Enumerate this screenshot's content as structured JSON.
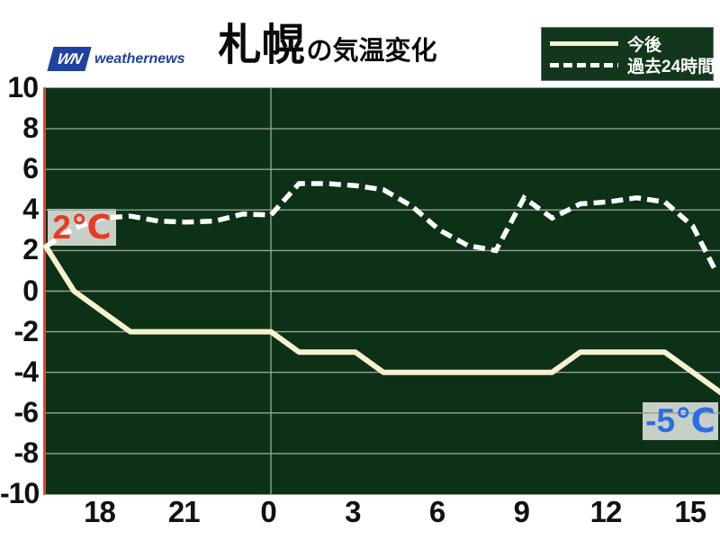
{
  "header": {
    "logo_mark": "WN",
    "logo_text": "weathernews",
    "title_city": "札幌",
    "title_suffix": "の気温変化"
  },
  "legend": {
    "forecast_label": "今後",
    "past_label": "過去24時間"
  },
  "annotations": {
    "current_temp": "2℃",
    "end_temp": "-5℃"
  },
  "colors": {
    "chart_background": "#0c3117",
    "grid_line": "#93a394",
    "left_axis": "#e8402c",
    "right_border": "#5374d2",
    "forecast_line": "#f7f2cd",
    "past_line": "#ffffff",
    "annotation_box": "#c7cfc7",
    "current_temp_text": "#ea3a21",
    "end_temp_text": "#2e6ce6",
    "logo_blue": "#1f419f"
  },
  "chart_data": {
    "type": "line",
    "title": "札幌の気温変化",
    "xlabel": "",
    "ylabel": "",
    "xlim_hours": [
      16,
      40
    ],
    "ylim": [
      -10,
      10
    ],
    "grid": {
      "horizontal_step": 2,
      "vertical_lines_at_hours": [
        24
      ]
    },
    "x_axis": {
      "tick_hours": [
        18,
        21,
        24,
        27,
        30,
        33,
        36,
        39
      ],
      "tick_labels": [
        "18",
        "21",
        "0",
        "3",
        "6",
        "9",
        "12",
        "15"
      ]
    },
    "y_axis": {
      "tick_values": [
        10,
        8,
        6,
        4,
        2,
        0,
        -2,
        -4,
        -6,
        -8,
        -10
      ],
      "tick_labels": [
        "10",
        "8",
        "6",
        "4",
        "2",
        "0",
        "-2",
        "-4",
        "-6",
        "-8",
        "-10"
      ]
    },
    "legend_position": "top-right",
    "series": [
      {
        "name": "今後",
        "style": "solid",
        "color": "#f7f2cd",
        "stroke_width": 6,
        "points": [
          [
            16,
            2.2
          ],
          [
            17,
            0
          ],
          [
            18,
            -1
          ],
          [
            19,
            -2
          ],
          [
            24,
            -2
          ],
          [
            25,
            -3
          ],
          [
            27,
            -3
          ],
          [
            28,
            -4
          ],
          [
            34,
            -4
          ],
          [
            35,
            -3
          ],
          [
            38,
            -3
          ],
          [
            39,
            -4
          ],
          [
            40,
            -5
          ]
        ]
      },
      {
        "name": "過去24時間",
        "style": "dashed",
        "color": "#ffffff",
        "stroke_width": 5.5,
        "dash": [
          13,
          7
        ],
        "points": [
          [
            16,
            2.2
          ],
          [
            17,
            3.1
          ],
          [
            18,
            3.6
          ],
          [
            19,
            3.7
          ],
          [
            20,
            3.45
          ],
          [
            21,
            3.4
          ],
          [
            22,
            3.45
          ],
          [
            23,
            3.8
          ],
          [
            24,
            3.75
          ],
          [
            25,
            5.3
          ],
          [
            26,
            5.3
          ],
          [
            27,
            5.2
          ],
          [
            28,
            5.0
          ],
          [
            29,
            4.2
          ],
          [
            30,
            3.0
          ],
          [
            31,
            2.25
          ],
          [
            32,
            2.0
          ],
          [
            33,
            4.6
          ],
          [
            34,
            3.6
          ],
          [
            35,
            4.3
          ],
          [
            36,
            4.4
          ],
          [
            37,
            4.6
          ],
          [
            38,
            4.4
          ],
          [
            39,
            3.2
          ],
          [
            39.85,
            0.9
          ]
        ]
      }
    ]
  }
}
